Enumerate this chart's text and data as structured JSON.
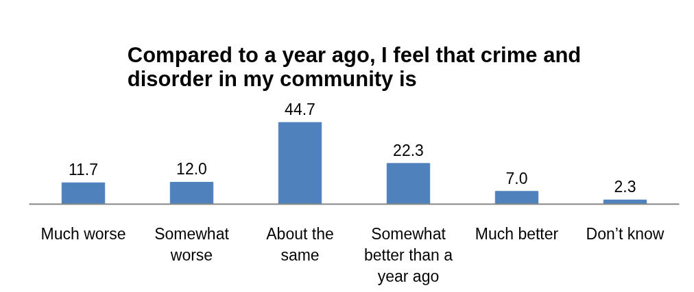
{
  "chart_data": {
    "type": "bar",
    "title": "Compared to a year ago, I feel that crime and disorder in my community is",
    "categories": [
      "Much worse",
      "Somewhat worse",
      "About the same",
      "Somewhat better than a year ago",
      "Much better",
      "Don’t know"
    ],
    "values": [
      11.7,
      12.0,
      44.7,
      22.3,
      7.0,
      2.3
    ],
    "color": "#4f81bd",
    "value_labels": [
      "11.7",
      "12.0",
      "44.7",
      "22.3",
      "7.0",
      "2.3"
    ],
    "tick_labels": "x",
    "grid": false
  }
}
